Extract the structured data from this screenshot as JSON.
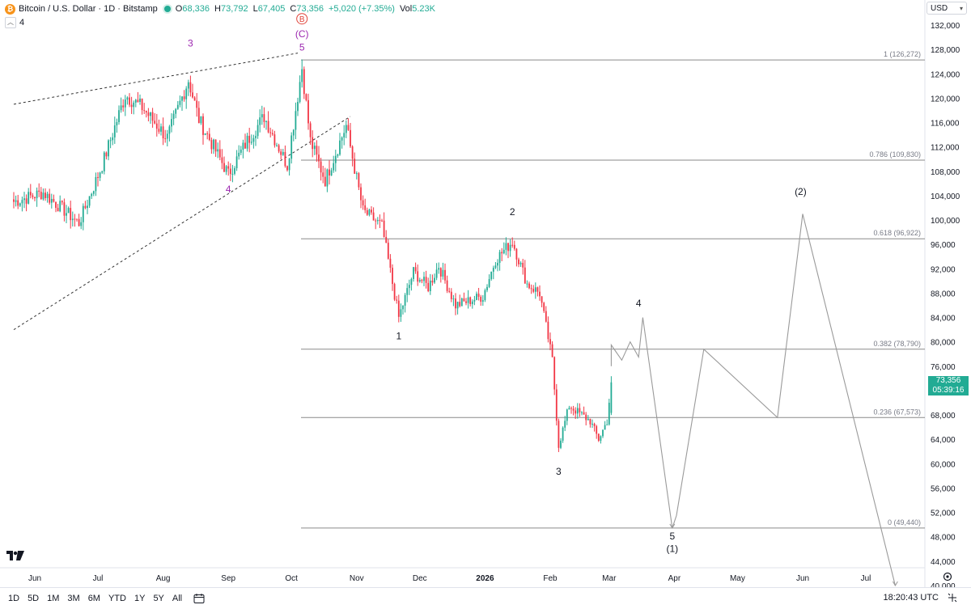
{
  "header": {
    "title": "Bitcoin / U.S. Dollar · 1D · Bitstamp",
    "coin_symbol": "₿",
    "open_label": "O",
    "open": "68,336",
    "high_label": "H",
    "high": "73,792",
    "low_label": "L",
    "low": "67,405",
    "close_label": "C",
    "close": "73,356",
    "change": "+5,020 (+7.35%)",
    "vol_label": "Vol",
    "vol": "5.23K",
    "indicators_count": "4"
  },
  "currency": "USD",
  "price_tag": {
    "price": "73,356",
    "countdown": "05:39:16"
  },
  "timeframes": [
    "1D",
    "5D",
    "1M",
    "3M",
    "6M",
    "YTD",
    "1Y",
    "5Y",
    "All"
  ],
  "clock": "18:20:43 UTC",
  "colors": {
    "up": "#22ab94",
    "down": "#f23645",
    "wave_letter": "#9c27b0",
    "wave_circle": "#e0443a"
  },
  "chart_data": {
    "type": "candlestick",
    "y_ticks": [
      "132,000",
      "128,000",
      "124,000",
      "120,000",
      "116,000",
      "112,000",
      "108,000",
      "104,000",
      "100,000",
      "96,000",
      "92,000",
      "88,000",
      "84,000",
      "80,000",
      "76,000",
      "72,000",
      "68,000",
      "64,000",
      "60,000",
      "56,000",
      "52,000",
      "48,000",
      "44,000",
      "40,000"
    ],
    "ylim": [
      40000,
      132000
    ],
    "x_ticks": [
      "Jun",
      "Jul",
      "Aug",
      "Sep",
      "Oct",
      "Nov",
      "Dec",
      "2026",
      "Feb",
      "Mar",
      "Apr",
      "May",
      "Jun",
      "Jul"
    ],
    "fib_levels": [
      {
        "label": "1 (126,272)",
        "value": 126272
      },
      {
        "label": "0.786 (109,830)",
        "value": 109830
      },
      {
        "label": "0.618 (96,922)",
        "value": 96922
      },
      {
        "label": "0.382 (78,790)",
        "value": 78790
      },
      {
        "label": "0.236 (67,573)",
        "value": 67573
      },
      {
        "label": "0 (49,440)",
        "value": 49440
      }
    ],
    "wave_labels": [
      {
        "text": "3",
        "date": "2025-08-14",
        "price": 128500,
        "color": "purple"
      },
      {
        "text": "4",
        "date": "2025-09-01",
        "price": 104500,
        "color": "purple"
      },
      {
        "text": "5",
        "date": "2025-10-06",
        "price": 127800,
        "color": "purple"
      },
      {
        "text": "(C)",
        "date": "2025-10-06",
        "price": 130000,
        "color": "purple"
      },
      {
        "text": "B",
        "date": "2025-10-06",
        "price": 132500,
        "color": "circle"
      },
      {
        "text": "1",
        "date": "2025-11-21",
        "price": 80400,
        "color": "black"
      },
      {
        "text": "2",
        "date": "2026-01-14",
        "price": 100800,
        "color": "black"
      },
      {
        "text": "3",
        "date": "2026-02-05",
        "price": 58200,
        "color": "black"
      },
      {
        "text": "4",
        "date": "2026-03-15",
        "price": 85800,
        "color": "black"
      },
      {
        "text": "5",
        "date": "2026-03-31",
        "price": 47600,
        "color": "black"
      },
      {
        "text": "(1)",
        "date": "2026-03-31",
        "price": 45500,
        "color": "black"
      },
      {
        "text": "(2)",
        "date": "2026-05-31",
        "price": 104100,
        "color": "black"
      }
    ],
    "projection": [
      {
        "date": "2026-03-02",
        "price": 76000
      },
      {
        "date": "2026-03-02",
        "price": 79500
      },
      {
        "date": "2026-03-07",
        "price": 77000
      },
      {
        "date": "2026-03-11",
        "price": 80000
      },
      {
        "date": "2026-03-15",
        "price": 77500
      },
      {
        "date": "2026-03-17",
        "price": 84000
      },
      {
        "date": "2026-03-31",
        "price": 49440
      },
      {
        "date": "2026-04-02",
        "price": 51500
      },
      {
        "date": "2026-04-15",
        "price": 78790
      },
      {
        "date": "2026-05-20",
        "price": 67573
      },
      {
        "date": "2026-06-01",
        "price": 101000
      },
      {
        "date": "2026-07-15",
        "price": 40000
      }
    ],
    "trendlines": [
      {
        "from": {
          "date": "2025-05-22",
          "price": 119000
        },
        "to": {
          "date": "2025-10-04",
          "price": 127400
        }
      },
      {
        "from": {
          "date": "2025-05-22",
          "price": 82000
        },
        "to": {
          "date": "2025-10-29",
          "price": 117000
        }
      }
    ],
    "anchors": [
      {
        "date": "2025-05-22",
        "price": 103000
      },
      {
        "date": "2025-06-05",
        "price": 104500
      },
      {
        "date": "2025-06-22",
        "price": 99500
      },
      {
        "date": "2025-07-03",
        "price": 109000
      },
      {
        "date": "2025-07-14",
        "price": 120500
      },
      {
        "date": "2025-07-22",
        "price": 118500
      },
      {
        "date": "2025-08-03",
        "price": 113500
      },
      {
        "date": "2025-08-13",
        "price": 123000
      },
      {
        "date": "2025-08-18",
        "price": 116500
      },
      {
        "date": "2025-09-01",
        "price": 107500
      },
      {
        "date": "2025-09-10",
        "price": 113000
      },
      {
        "date": "2025-09-18",
        "price": 117000
      },
      {
        "date": "2025-09-29",
        "price": 109000
      },
      {
        "date": "2025-10-06",
        "price": 125000
      },
      {
        "date": "2025-10-10",
        "price": 113000
      },
      {
        "date": "2025-10-17",
        "price": 106500
      },
      {
        "date": "2025-10-27",
        "price": 115500
      },
      {
        "date": "2025-11-04",
        "price": 101500
      },
      {
        "date": "2025-11-13",
        "price": 99000
      },
      {
        "date": "2025-11-21",
        "price": 84000
      },
      {
        "date": "2025-11-28",
        "price": 91500
      },
      {
        "date": "2025-12-05",
        "price": 89000
      },
      {
        "date": "2025-12-10",
        "price": 92500
      },
      {
        "date": "2025-12-18",
        "price": 86000
      },
      {
        "date": "2025-12-31",
        "price": 87500
      },
      {
        "date": "2026-01-06",
        "price": 93500
      },
      {
        "date": "2026-01-14",
        "price": 96500
      },
      {
        "date": "2026-01-21",
        "price": 89500
      },
      {
        "date": "2026-01-27",
        "price": 88000
      },
      {
        "date": "2026-02-02",
        "price": 77000
      },
      {
        "date": "2026-02-05",
        "price": 63000
      },
      {
        "date": "2026-02-10",
        "price": 69500
      },
      {
        "date": "2026-02-20",
        "price": 67000
      },
      {
        "date": "2026-02-24",
        "price": 64000
      },
      {
        "date": "2026-02-28",
        "price": 67000
      },
      {
        "date": "2026-03-02",
        "price": 73356
      }
    ]
  }
}
